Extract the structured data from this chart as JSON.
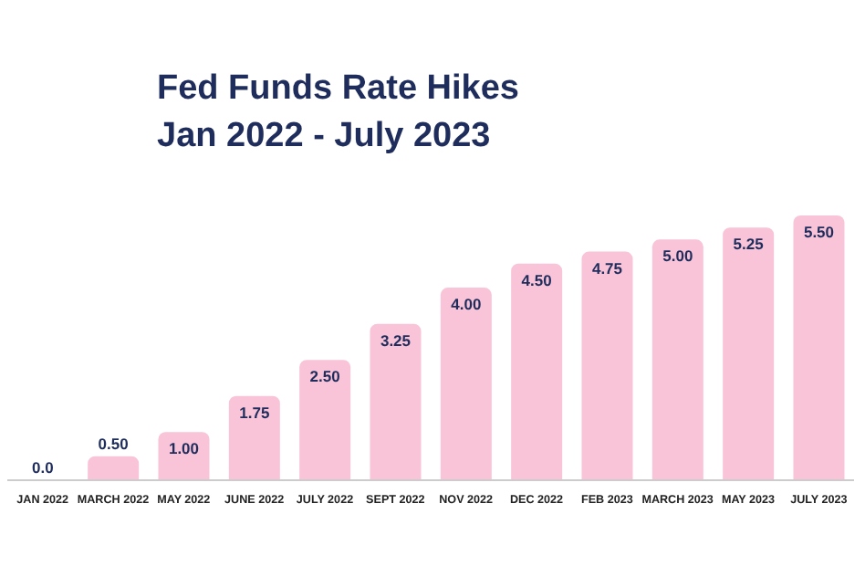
{
  "chart_data": {
    "type": "bar",
    "title": "Fed Funds Rate Hikes",
    "subtitle": "Jan 2022 - July 2023",
    "categories": [
      "JAN 2022",
      "MARCH 2022",
      "MAY 2022",
      "JUNE 2022",
      "JULY 2022",
      "SEPT 2022",
      "NOV 2022",
      "DEC 2022",
      "FEB 2023",
      "MARCH 2023",
      "MAY 2023",
      "JULY 2023"
    ],
    "values": [
      0,
      0.5,
      1,
      1.75,
      2.5,
      3.25,
      4,
      4.5,
      4.75,
      5,
      5.25,
      5.5
    ],
    "value_labels": [
      "0.0",
      "0.50",
      "1.00",
      "1.75",
      "2.50",
      "3.25",
      "4.00",
      "4.50",
      "4.75",
      "5.00",
      "5.25",
      "5.50"
    ],
    "color": "#f9c4d8",
    "grid": false,
    "legend": false
  }
}
